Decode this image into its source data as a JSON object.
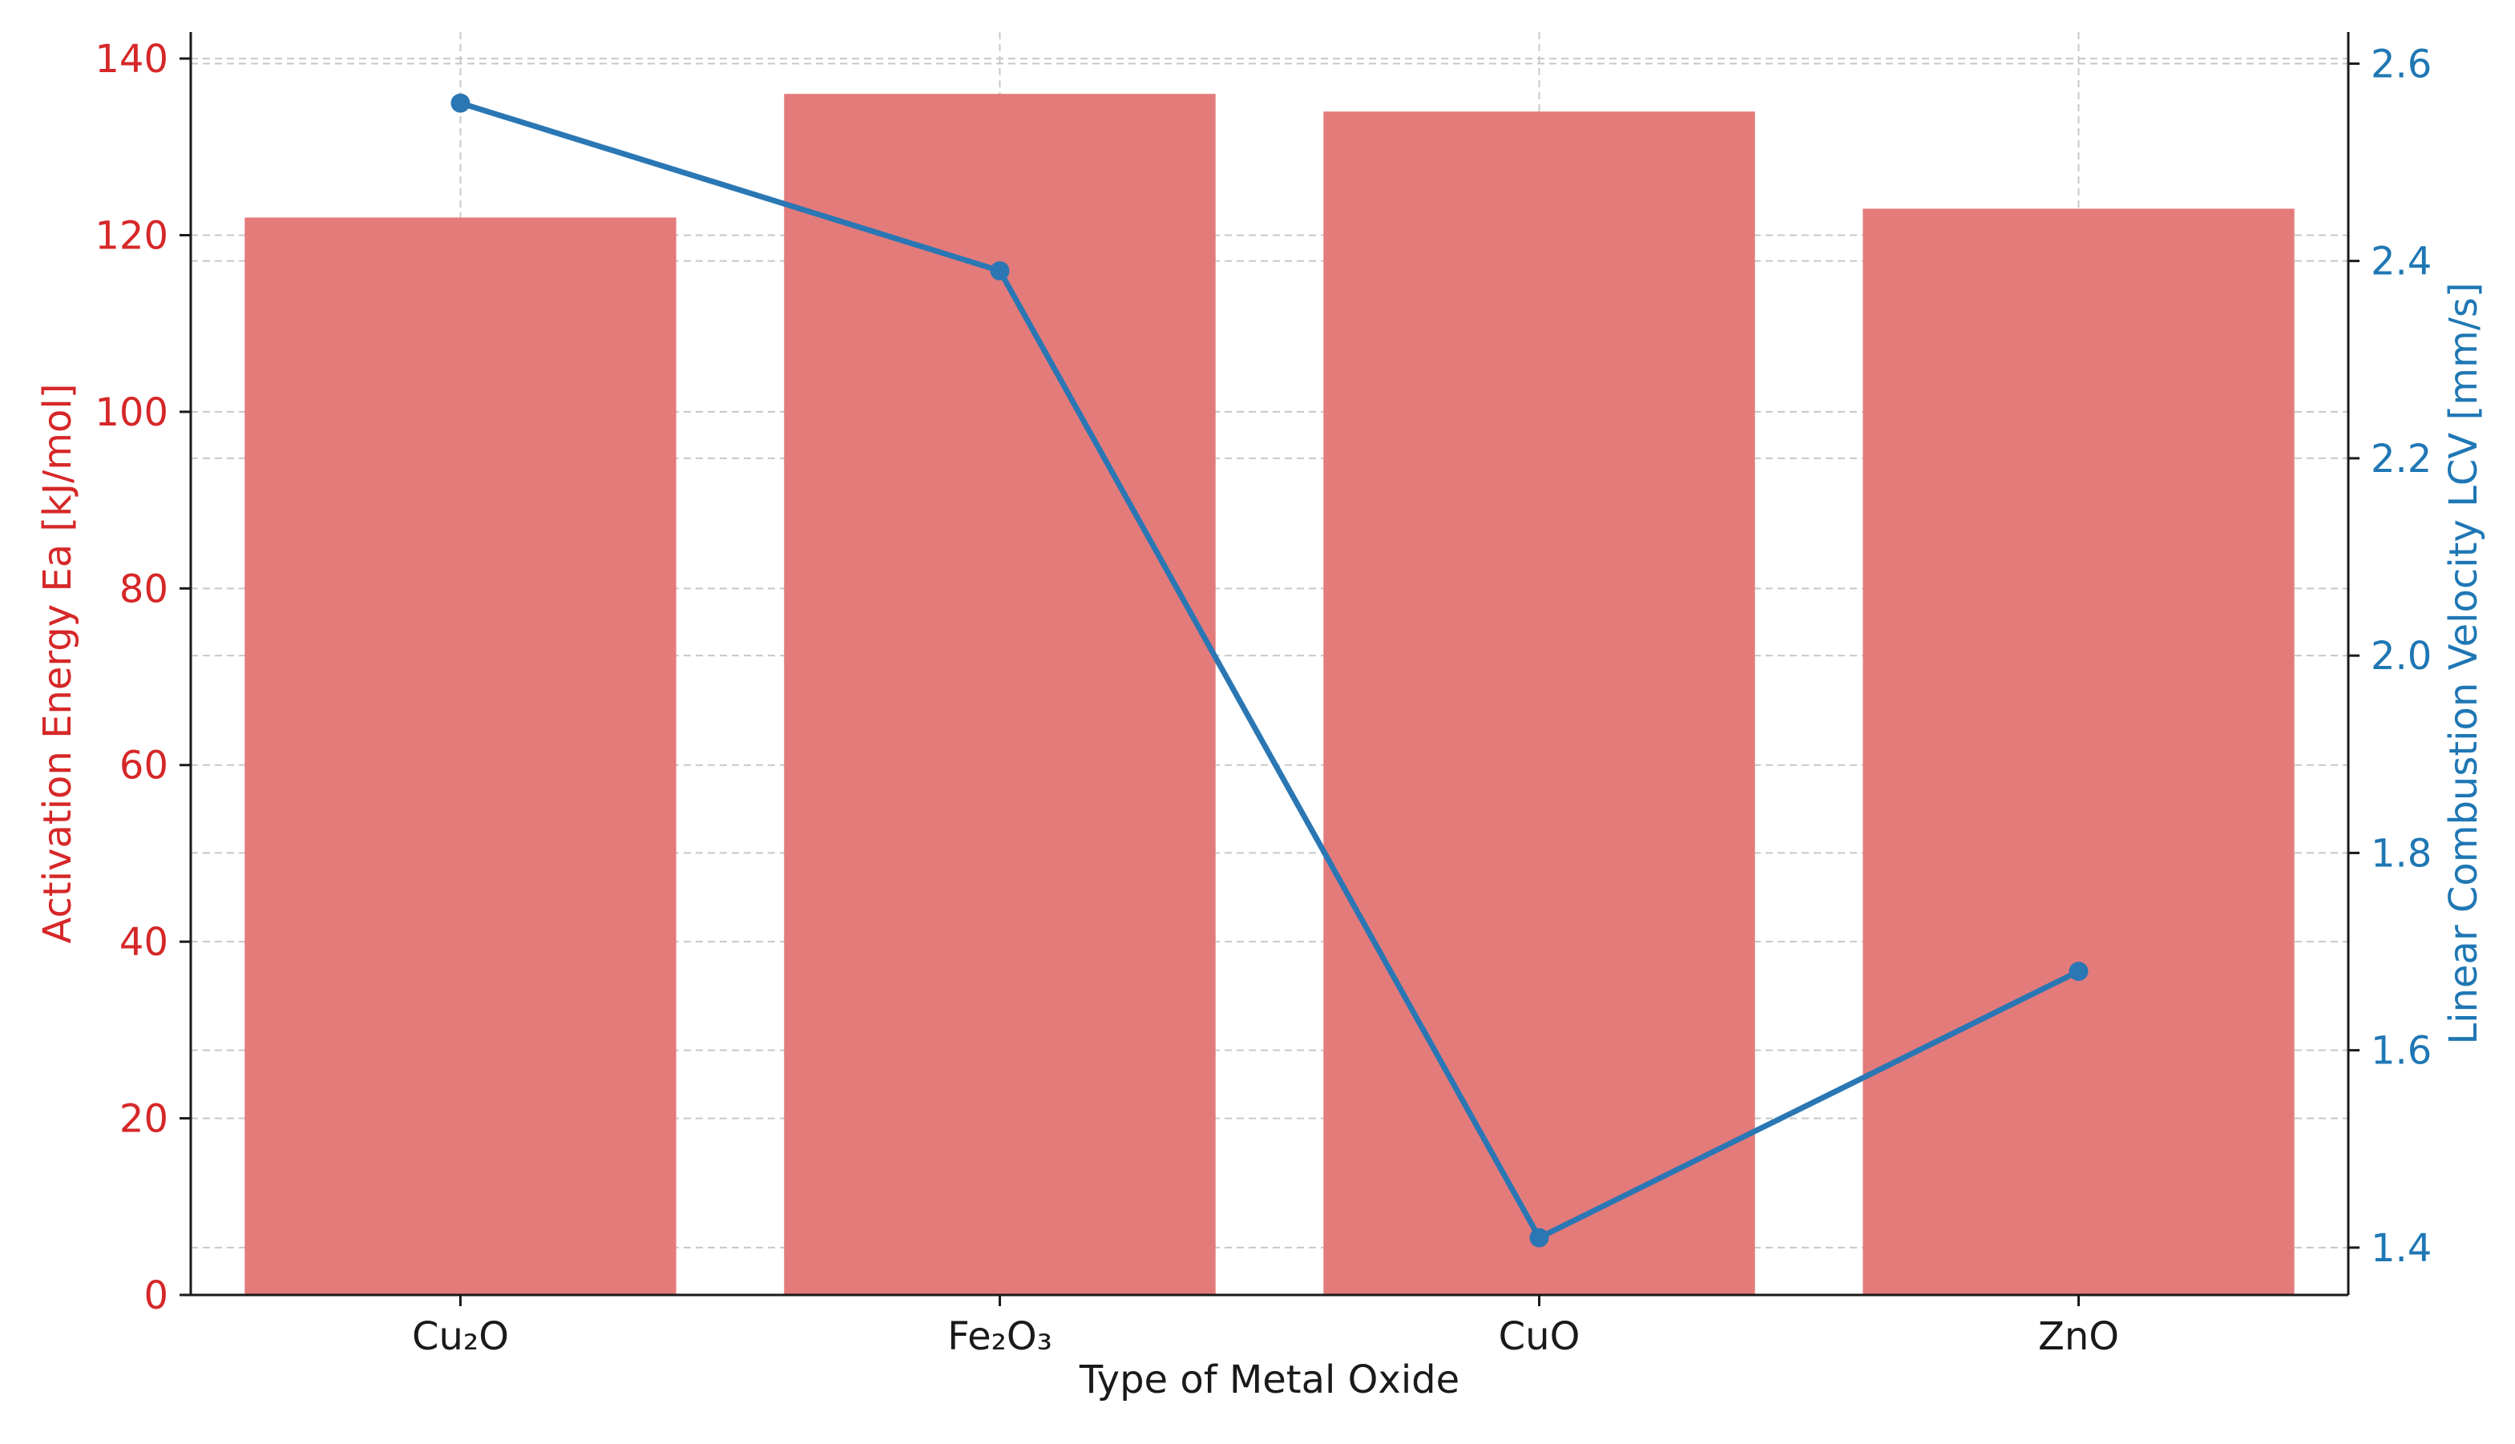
{
  "chart_data": {
    "type": "bar",
    "categories": [
      "Cu₂O",
      "Fe₂O₃",
      "CuO",
      "ZnO"
    ],
    "xlabel": "Type of Metal Oxide",
    "grid": true,
    "series": [
      {
        "name": "Activation Energy Ea [kJ/mol]",
        "type": "bar",
        "axis": "left",
        "color": "#e47b7b",
        "values": [
          122,
          136,
          134,
          123
        ]
      },
      {
        "name": "Linear Combustion Velocity LCV [mm/s]",
        "type": "line",
        "axis": "right",
        "color": "#2a77b4",
        "values": [
          2.56,
          2.39,
          1.41,
          1.68
        ]
      }
    ],
    "y_left": {
      "label": "Activation Energy Ea [kJ/mol]",
      "color": "#d62728",
      "ylim": [
        0,
        143
      ],
      "ticks": [
        0,
        20,
        40,
        60,
        80,
        100,
        120,
        140
      ]
    },
    "y_right": {
      "label": "Linear Combustion Velocity LCV [mm/s]",
      "color": "#1f77b4",
      "ylim": [
        1.352,
        2.632
      ],
      "ticks": [
        1.4,
        1.6,
        1.8,
        2.0,
        2.2,
        2.4,
        2.6
      ],
      "tick_labels": [
        "1.4",
        "1.6",
        "1.8",
        "2.0",
        "2.2",
        "2.4",
        "2.6"
      ]
    }
  }
}
